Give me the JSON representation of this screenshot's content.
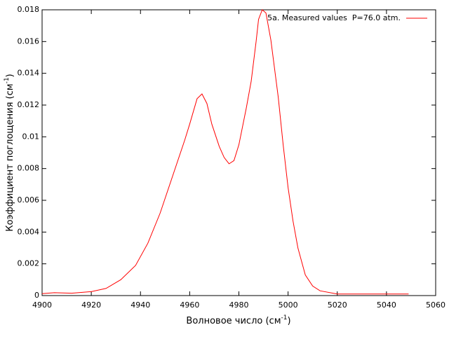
{
  "chart_data": {
    "type": "line",
    "xlabel_parts": [
      "Волновое число (см",
      "-1",
      ")"
    ],
    "ylabel_parts": [
      "Коэффициент поглощения (см",
      "-1",
      ")"
    ],
    "legend": "top-right",
    "xlim": [
      4900,
      5060
    ],
    "xticks": [
      4900,
      4920,
      4940,
      4960,
      4980,
      5000,
      5020,
      5040,
      5060
    ],
    "ylim": [
      0,
      0.018
    ],
    "yticks": [
      0,
      0.002,
      0.004,
      0.006,
      0.008,
      0.01,
      0.012,
      0.014,
      0.016,
      0.018
    ],
    "series": [
      {
        "name": "5a. Measured values  P=76.0 atm.",
        "color": "#ff0000",
        "x": [
          4900,
          4905,
          4912,
          4920,
          4926,
          4932,
          4938,
          4943,
          4948,
          4953,
          4958,
          4960,
          4963,
          4965,
          4967,
          4969,
          4972,
          4974,
          4976,
          4978,
          4980,
          4983,
          4985,
          4987,
          4988,
          4989.5,
          4991,
          4993,
          4996,
          4998,
          5000,
          5002,
          5004,
          5007,
          5010,
          5013,
          5020,
          5049
        ],
        "values": [
          0.00012,
          0.00018,
          0.00015,
          0.00025,
          0.00045,
          0.001,
          0.0019,
          0.0033,
          0.0052,
          0.0075,
          0.0098,
          0.0108,
          0.0124,
          0.0127,
          0.0121,
          0.0108,
          0.0094,
          0.0087,
          0.0083,
          0.0085,
          0.0095,
          0.0118,
          0.0135,
          0.016,
          0.0174,
          0.018,
          0.0178,
          0.0161,
          0.0125,
          0.0095,
          0.0068,
          0.0047,
          0.003,
          0.0013,
          0.0006,
          0.0003,
          0.0001,
          0.0001
        ]
      }
    ]
  }
}
